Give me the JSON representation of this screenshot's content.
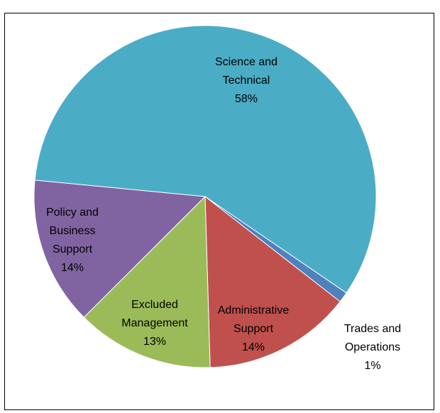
{
  "chart_data": {
    "type": "pie",
    "title": "",
    "slices": [
      {
        "label_lines": [
          "Science and",
          "Technical"
        ],
        "percent_label": "58%",
        "value": 58,
        "color": "#4BACC6"
      },
      {
        "label_lines": [
          "Trades and",
          "Operations"
        ],
        "percent_label": "1%",
        "value": 1,
        "color": "#4F81BD"
      },
      {
        "label_lines": [
          "Administrative",
          "Support"
        ],
        "percent_label": "14%",
        "value": 14,
        "color": "#C0504D"
      },
      {
        "label_lines": [
          "Excluded",
          "Management"
        ],
        "percent_label": "13%",
        "value": 13,
        "color": "#9BBB59"
      },
      {
        "label_lines": [
          "Policy and",
          "Business",
          "Support"
        ],
        "percent_label": "14%",
        "value": 14,
        "color": "#8064A2"
      }
    ],
    "legend": "none",
    "start_angle_note": "clockwise"
  }
}
